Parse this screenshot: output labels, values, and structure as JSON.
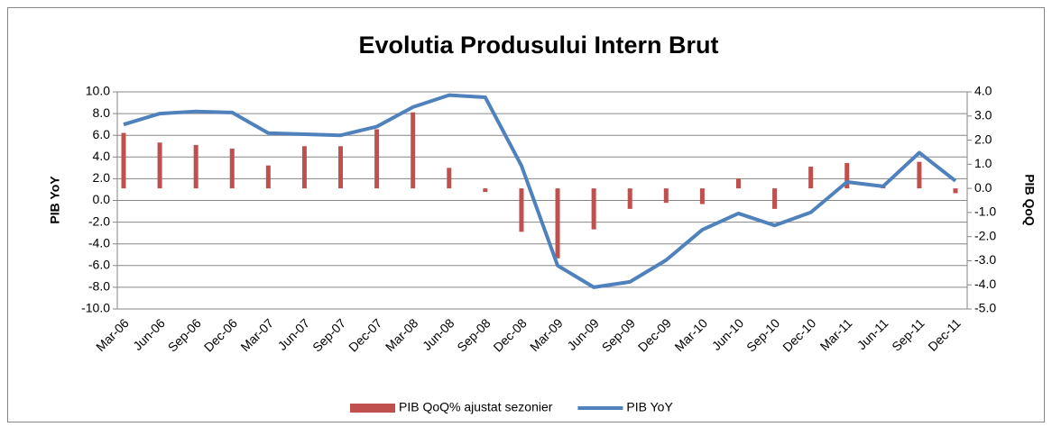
{
  "chart_data": {
    "type": "combo",
    "title": "Evolutia Produsului Intern Brut",
    "y_label": "PIB YoY",
    "y2_label": "PIB QoQ",
    "categories": [
      "Mar-06",
      "Jun-06",
      "Sep-06",
      "Dec-06",
      "Mar-07",
      "Jun-07",
      "Sep-07",
      "Dec-07",
      "Mar-08",
      "Jun-08",
      "Sep-08",
      "Dec-08",
      "Mar-09",
      "Jun-09",
      "Sep-09",
      "Dec-09",
      "Mar-10",
      "Jun-10",
      "Sep-10",
      "Dec-10",
      "Mar-11",
      "Jun-11",
      "Sep-11",
      "Dec-11"
    ],
    "series": [
      {
        "name": "PIB QoQ% ajustat sezonier",
        "type": "bar",
        "axis": "y2",
        "color": "#c0504d",
        "values": [
          2.3,
          1.9,
          1.8,
          1.65,
          0.95,
          1.75,
          1.75,
          2.45,
          3.15,
          0.85,
          -0.15,
          -1.8,
          -2.9,
          -1.7,
          -0.85,
          -0.6,
          -0.65,
          0.4,
          -0.85,
          0.9,
          1.05,
          0.1,
          1.1,
          -0.2
        ]
      },
      {
        "name": "PIB YoY",
        "type": "line",
        "axis": "y",
        "color": "#4f81bd",
        "values": [
          7.0,
          8.0,
          8.2,
          8.1,
          6.2,
          6.1,
          6.0,
          6.8,
          8.6,
          9.7,
          9.5,
          3.2,
          -6.0,
          -8.0,
          -7.5,
          -5.5,
          -2.7,
          -1.2,
          -2.3,
          -1.1,
          1.7,
          1.3,
          4.4,
          1.8
        ]
      }
    ],
    "ylim": [
      -10,
      10
    ],
    "yticks": [
      {
        "value": -10,
        "label": "-10.0"
      },
      {
        "value": -8,
        "label": "-8.0"
      },
      {
        "value": -6,
        "label": "-6.0"
      },
      {
        "value": -4,
        "label": "-4.0"
      },
      {
        "value": -2,
        "label": "-2.0"
      },
      {
        "value": 0,
        "label": "0.0"
      },
      {
        "value": 2,
        "label": "2.0"
      },
      {
        "value": 4,
        "label": "4.0"
      },
      {
        "value": 6,
        "label": "6.0"
      },
      {
        "value": 8,
        "label": "8.0"
      },
      {
        "value": 10,
        "label": "10.0"
      }
    ],
    "y2lim": [
      -5,
      4
    ],
    "y2ticks": [
      {
        "value": -5,
        "label": "-5.0"
      },
      {
        "value": -4,
        "label": "-4.0"
      },
      {
        "value": -3,
        "label": "-3.0"
      },
      {
        "value": -2,
        "label": "-2.0"
      },
      {
        "value": -1,
        "label": "-1.0"
      },
      {
        "value": 0,
        "label": "0.0"
      },
      {
        "value": 1,
        "label": "1.0"
      },
      {
        "value": 2,
        "label": "2.0"
      },
      {
        "value": 3,
        "label": "3.0"
      },
      {
        "value": 4,
        "label": "4.0"
      }
    ],
    "grid": true,
    "legend": "bottom"
  }
}
